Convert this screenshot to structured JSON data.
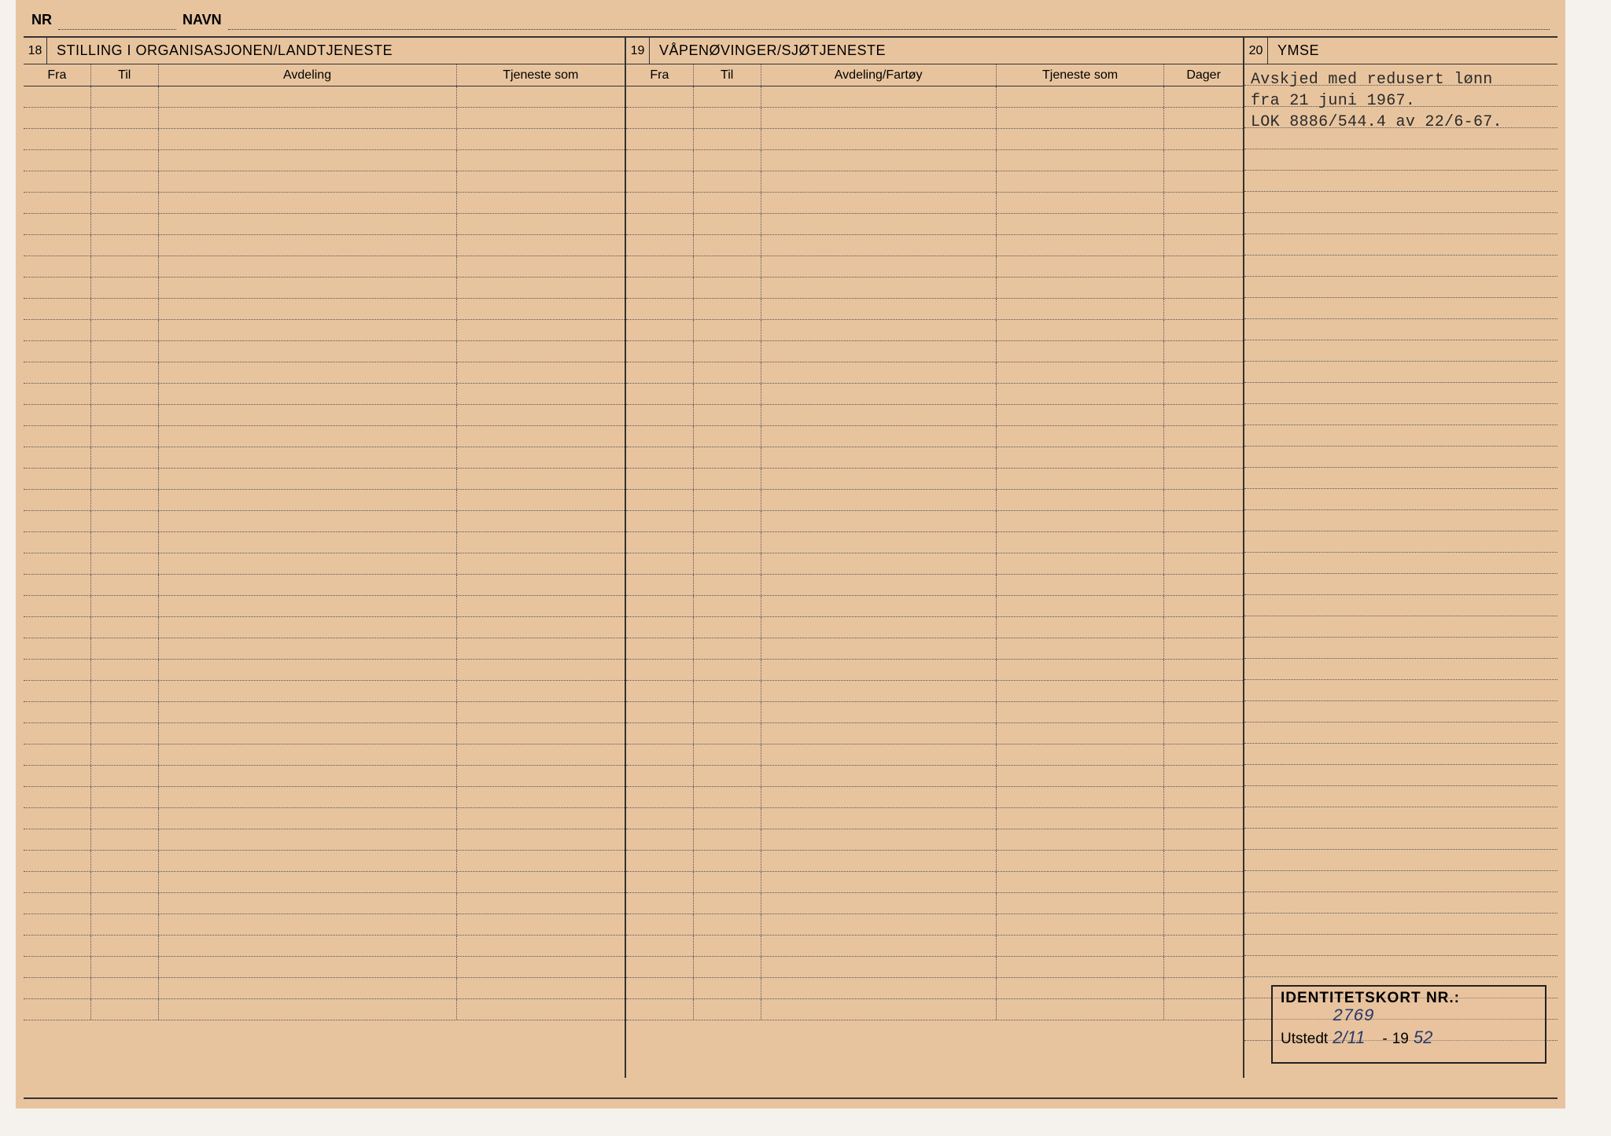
{
  "top": {
    "nr_label": "NR",
    "navn_label": "NAVN",
    "nr_value": "",
    "navn_value": ""
  },
  "section18": {
    "num": "18",
    "title": "STILLING I ORGANISASJONEN/LANDTJENESTE",
    "cols": {
      "fra": "Fra",
      "til": "Til",
      "avdeling": "Avdeling",
      "tjeneste": "Tjeneste som"
    },
    "row_count": 44
  },
  "section19": {
    "num": "19",
    "title": "VÅPENØVINGER/SJØTJENESTE",
    "cols": {
      "fra": "Fra",
      "til": "Til",
      "avdeling": "Avdeling/Fartøy",
      "tjeneste": "Tjeneste som",
      "dager": "Dager"
    },
    "row_count": 44
  },
  "section20": {
    "num": "20",
    "title": "YMSE",
    "lines": [
      "Avskjed med redusert lønn",
      "fra 21 juni 1967.",
      "LOK 8886/544.4 av 22/6-67."
    ],
    "row_count": 46
  },
  "idbox": {
    "label": "IDENTITETSKORT NR.:",
    "utstedt_label": "Utstedt",
    "nr_value": "2769",
    "utstedt_value": "2/11",
    "year_prefix": "19",
    "year_value": "52"
  },
  "colors": {
    "card_bg": "#e8c49e",
    "line": "#333333",
    "text": "#222222",
    "hand": "#2a3a6a"
  }
}
